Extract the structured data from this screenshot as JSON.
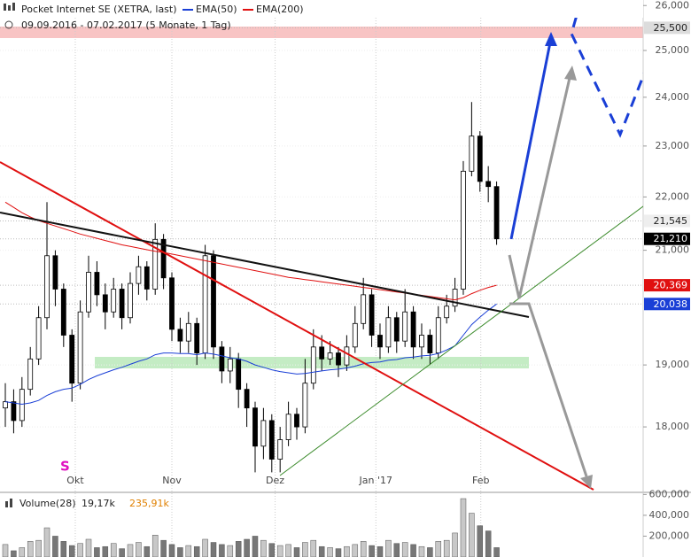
{
  "chart_data": {
    "type": "candlestick",
    "title": "Pocket Internet SE (XETRA, last)",
    "subtitle": "09.09.2016 - 07.02.2017 (5 Monate, 1 Tag)",
    "annotation": "S",
    "log_y": true,
    "ylim": [
      17040,
      26025
    ],
    "yticks": [
      {
        "value": 18000,
        "label": "18,000"
      },
      {
        "value": 19000,
        "label": "19,000"
      },
      {
        "value": 21000,
        "label": "21,000"
      },
      {
        "value": 22000,
        "label": "22,000"
      },
      {
        "value": 23000,
        "label": "23,000"
      },
      {
        "value": 24000,
        "label": "24,000"
      },
      {
        "value": 25000,
        "label": "25,000"
      },
      {
        "value": 26000,
        "label": "26,000"
      }
    ],
    "xlim": [
      -0.64,
      76.6
    ],
    "xticks": [
      {
        "value": 8.4,
        "label": "Okt"
      },
      {
        "value": 20,
        "label": "Nov"
      },
      {
        "value": 32.4,
        "label": "Dez"
      },
      {
        "value": 44.5,
        "label": "Jan '17"
      },
      {
        "value": 57.1,
        "label": "Feb"
      }
    ],
    "price_tags": [
      {
        "value": 25500,
        "label": "25,500",
        "color": "#dcdcdc"
      },
      {
        "value": 21545,
        "label": "21,545",
        "color": "#eeeeee"
      },
      {
        "value": 21210,
        "label": "21,210",
        "color": "#000000"
      },
      {
        "value": 20369,
        "label": "20,369",
        "color": "#e01010"
      },
      {
        "value": 20038,
        "label": "20,038",
        "color": "#1a3fd6"
      }
    ],
    "x": [
      0,
      1,
      2,
      3,
      4,
      5,
      6,
      7,
      8,
      9,
      10,
      11,
      12,
      13,
      14,
      15,
      16,
      17,
      18,
      19,
      20,
      21,
      22,
      23,
      24,
      25,
      26,
      27,
      28,
      29,
      30,
      31,
      32,
      33,
      34,
      35,
      36,
      37,
      38,
      39,
      40,
      41,
      42,
      43,
      44,
      45,
      46,
      47,
      48,
      49,
      50,
      51,
      52,
      53,
      54,
      55,
      56,
      57,
      58,
      59
    ],
    "ohlc": {
      "open": [
        18300,
        18400,
        18100,
        18600,
        19100,
        19800,
        20900,
        20300,
        19500,
        18700,
        19900,
        20600,
        20200,
        19900,
        20300,
        19800,
        20400,
        20700,
        20300,
        21200,
        20500,
        19600,
        19400,
        19700,
        19200,
        20900,
        19300,
        18900,
        19100,
        18600,
        18300,
        17700,
        18100,
        17500,
        17800,
        18200,
        18000,
        18700,
        19300,
        19100,
        19200,
        19000,
        19300,
        19700,
        20200,
        19500,
        19300,
        19800,
        19400,
        19900,
        19300,
        19500,
        19200,
        19800,
        20000,
        20300,
        22500,
        23200,
        22300,
        22200
      ],
      "high": [
        18700,
        18600,
        18800,
        19300,
        20000,
        21900,
        21000,
        20400,
        19600,
        20100,
        20900,
        20800,
        20400,
        20500,
        20400,
        20600,
        20900,
        20800,
        21500,
        21300,
        20600,
        19800,
        19900,
        19800,
        21100,
        21000,
        19400,
        19300,
        19200,
        18700,
        18400,
        18300,
        18200,
        18000,
        18400,
        18300,
        19100,
        19600,
        19500,
        19400,
        19300,
        19500,
        20000,
        20500,
        20300,
        19700,
        20000,
        19900,
        20300,
        20000,
        19700,
        19600,
        20000,
        20200,
        20500,
        22700,
        23900,
        23300,
        22600,
        22300
      ],
      "low": [
        18000,
        17900,
        18000,
        18500,
        19000,
        19600,
        20000,
        19300,
        18400,
        18600,
        19800,
        20000,
        19600,
        19800,
        19600,
        19700,
        20200,
        20100,
        20200,
        20300,
        19400,
        19200,
        19200,
        19000,
        19100,
        19100,
        18700,
        18700,
        18300,
        18000,
        17300,
        17500,
        17300,
        17300,
        17700,
        17800,
        17900,
        18600,
        18900,
        19000,
        18800,
        18900,
        19200,
        19600,
        19300,
        19100,
        19200,
        19200,
        19300,
        19100,
        19100,
        19000,
        19100,
        19700,
        19900,
        20200,
        22400,
        22100,
        21900,
        21100
      ],
      "close": [
        18400,
        18100,
        18600,
        19100,
        19800,
        20900,
        20300,
        19500,
        18700,
        19900,
        20600,
        20200,
        19900,
        20300,
        19800,
        20400,
        20700,
        20300,
        21200,
        20500,
        19600,
        19400,
        19700,
        19200,
        20900,
        19300,
        18900,
        19100,
        18600,
        18300,
        17700,
        18100,
        17500,
        17800,
        18200,
        18000,
        18700,
        19300,
        19100,
        19200,
        19000,
        19300,
        19700,
        20200,
        19500,
        19300,
        19800,
        19400,
        19900,
        19300,
        19500,
        19200,
        19800,
        20000,
        20300,
        22500,
        23200,
        22300,
        22200,
        21210
      ]
    },
    "series": [
      {
        "name": "EMA(50)",
        "color": "#1a3fd6",
        "values": [
          18400,
          18380,
          18360,
          18380,
          18420,
          18500,
          18560,
          18600,
          18620,
          18680,
          18760,
          18820,
          18870,
          18920,
          18960,
          19010,
          19060,
          19100,
          19170,
          19200,
          19200,
          19190,
          19190,
          19170,
          19200,
          19180,
          19150,
          19120,
          19100,
          19060,
          19000,
          18960,
          18920,
          18890,
          18870,
          18850,
          18860,
          18880,
          18900,
          18920,
          18930,
          18950,
          18980,
          19020,
          19040,
          19050,
          19080,
          19090,
          19120,
          19130,
          19150,
          19160,
          19190,
          19250,
          19320,
          19500,
          19680,
          19810,
          19930,
          20038
        ]
      },
      {
        "name": "EMA(200)",
        "color": "#e01010",
        "values": [
          21900,
          21800,
          21700,
          21620,
          21550,
          21500,
          21450,
          21400,
          21350,
          21300,
          21260,
          21220,
          21180,
          21140,
          21100,
          21070,
          21040,
          21010,
          20980,
          20960,
          20930,
          20900,
          20870,
          20840,
          20810,
          20780,
          20750,
          20720,
          20690,
          20660,
          20630,
          20600,
          20570,
          20540,
          20510,
          20490,
          20470,
          20450,
          20430,
          20410,
          20390,
          20370,
          20350,
          20330,
          20310,
          20290,
          20270,
          20250,
          20230,
          20210,
          20190,
          20170,
          20150,
          20130,
          20110,
          20150,
          20220,
          20280,
          20330,
          20369
        ]
      }
    ],
    "volume": {
      "label": "Volume(28)",
      "stats": [
        "19,17k",
        "235,91k"
      ],
      "ylim": [
        0,
        620000
      ],
      "yticks": [
        {
          "value": 200000,
          "label": "200,000"
        },
        {
          "value": 400000,
          "label": "400,000"
        },
        {
          "value": 600000,
          "label": "600,000"
        }
      ],
      "values": [
        120000,
        60000,
        90000,
        150000,
        160000,
        280000,
        200000,
        150000,
        110000,
        130000,
        170000,
        90000,
        100000,
        130000,
        80000,
        120000,
        140000,
        100000,
        210000,
        160000,
        120000,
        90000,
        110000,
        100000,
        170000,
        140000,
        120000,
        110000,
        150000,
        170000,
        200000,
        160000,
        130000,
        110000,
        120000,
        90000,
        140000,
        160000,
        100000,
        90000,
        80000,
        100000,
        120000,
        150000,
        110000,
        100000,
        160000,
        130000,
        140000,
        120000,
        100000,
        90000,
        150000,
        160000,
        230000,
        560000,
        420000,
        300000,
        250000,
        90000
      ]
    }
  }
}
